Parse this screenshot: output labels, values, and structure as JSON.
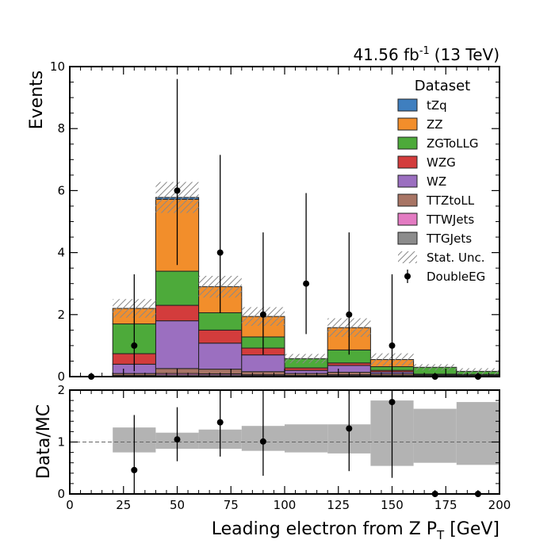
{
  "lumi": {
    "value": "41.56 fb",
    "exp": "-1",
    "energy": "(13 TeV)"
  },
  "legend": {
    "title": "Dataset",
    "entries": [
      {
        "label": "tZq",
        "color": "#3f7fbf",
        "kind": "fill"
      },
      {
        "label": "ZZ",
        "color": "#f28e2b",
        "kind": "fill"
      },
      {
        "label": "ZGToLLG",
        "color": "#4daa3a",
        "kind": "fill"
      },
      {
        "label": "WZG",
        "color": "#d33c3c",
        "kind": "fill"
      },
      {
        "label": "WZ",
        "color": "#9b6fc0",
        "kind": "fill"
      },
      {
        "label": "TTZtoLL",
        "color": "#a87565",
        "kind": "fill"
      },
      {
        "label": "TTWJets",
        "color": "#e37bc2",
        "kind": "fill"
      },
      {
        "label": "TTGJets",
        "color": "#8c8c8c",
        "kind": "fill"
      },
      {
        "label": "Stat. Unc.",
        "color": "#888888",
        "kind": "hatch"
      },
      {
        "label": "DoubleEG",
        "color": "#000000",
        "kind": "marker"
      }
    ]
  },
  "chart_data": [
    {
      "type": "bar",
      "stacked": true,
      "ylabel": "Events",
      "xlim": [
        0,
        200
      ],
      "ylim": [
        0,
        10
      ],
      "bin_edges": [
        0,
        20,
        40,
        60,
        80,
        100,
        120,
        140,
        160,
        180,
        200
      ],
      "series": [
        {
          "name": "TTGJets",
          "color": "#8c8c8c",
          "values": [
            0,
            0.02,
            0.05,
            0.05,
            0.03,
            0.02,
            0.03,
            0.02,
            0.01,
            0.01
          ]
        },
        {
          "name": "TTWJets",
          "color": "#e37bc2",
          "values": [
            0,
            0.02,
            0.05,
            0.04,
            0.03,
            0.02,
            0.03,
            0.02,
            0.01,
            0.01
          ]
        },
        {
          "name": "TTZtoLL",
          "color": "#a87565",
          "values": [
            0,
            0.06,
            0.16,
            0.15,
            0.1,
            0.06,
            0.08,
            0.05,
            0.02,
            0.02
          ]
        },
        {
          "name": "WZ",
          "color": "#9b6fc0",
          "values": [
            0,
            0.3,
            1.54,
            0.84,
            0.54,
            0.1,
            0.22,
            0.06,
            0.02,
            0.02
          ]
        },
        {
          "name": "WZG",
          "color": "#d33c3c",
          "values": [
            0,
            0.34,
            0.5,
            0.42,
            0.22,
            0.08,
            0.08,
            0.05,
            0.02,
            0.01
          ]
        },
        {
          "name": "ZGToLLG",
          "color": "#4daa3a",
          "values": [
            0,
            0.96,
            1.1,
            0.56,
            0.36,
            0.3,
            0.42,
            0.12,
            0.22,
            0.1
          ]
        },
        {
          "name": "ZZ",
          "color": "#f28e2b",
          "values": [
            0,
            0.5,
            2.32,
            0.84,
            0.66,
            0,
            0.72,
            0.23,
            0,
            0
          ]
        },
        {
          "name": "tZq",
          "color": "#3f7fbf",
          "values": [
            0,
            0,
            0.06,
            0,
            0,
            0,
            0,
            0,
            0,
            0
          ]
        }
      ],
      "stat_unc": [
        0,
        0.3,
        0.5,
        0.35,
        0.3,
        0.15,
        0.3,
        0.2,
        0.1,
        0.1
      ],
      "data": {
        "name": "DoubleEG",
        "x": [
          10,
          30,
          50,
          70,
          90,
          110,
          130,
          150,
          170,
          190
        ],
        "y": [
          0,
          1,
          6,
          4,
          2,
          3,
          2,
          1,
          0,
          0
        ],
        "err_up": [
          0,
          2.3,
          3.6,
          3.15,
          2.65,
          2.92,
          2.65,
          2.3,
          0,
          0
        ],
        "err_down": [
          0,
          0.83,
          2.4,
          1.95,
          1.29,
          1.63,
          1.29,
          0.83,
          0,
          0
        ]
      }
    },
    {
      "type": "scatter",
      "ylabel": "Data/MC",
      "xlabel": "Leading electron from Z  P_T [GeV]",
      "xlim": [
        0,
        200
      ],
      "ylim": [
        0,
        2
      ],
      "x_ticks": [
        0,
        25,
        50,
        75,
        100,
        125,
        150,
        175,
        200
      ],
      "y_ticks": [
        0,
        1,
        2
      ],
      "reference_line": 1,
      "unc_band": [
        {
          "x0": 20,
          "x1": 40,
          "lo": 0.8,
          "hi": 1.28
        },
        {
          "x0": 40,
          "x1": 60,
          "lo": 0.87,
          "hi": 1.18
        },
        {
          "x0": 60,
          "x1": 80,
          "lo": 0.87,
          "hi": 1.24
        },
        {
          "x0": 80,
          "x1": 100,
          "lo": 0.83,
          "hi": 1.31
        },
        {
          "x0": 100,
          "x1": 120,
          "lo": 0.8,
          "hi": 1.34
        },
        {
          "x0": 120,
          "x1": 140,
          "lo": 0.78,
          "hi": 1.34
        },
        {
          "x0": 140,
          "x1": 160,
          "lo": 0.54,
          "hi": 1.8
        },
        {
          "x0": 160,
          "x1": 180,
          "lo": 0.6,
          "hi": 1.64
        },
        {
          "x0": 180,
          "x1": 200,
          "lo": 0.56,
          "hi": 1.77
        }
      ],
      "points": [
        {
          "x": 30,
          "y": 0.46,
          "err_up": 1.06,
          "err_down": 0.46
        },
        {
          "x": 50,
          "y": 1.05,
          "err_up": 0.62,
          "err_down": 0.42
        },
        {
          "x": 70,
          "y": 1.38,
          "err_up": 1.08,
          "err_down": 0.66
        },
        {
          "x": 90,
          "y": 1.01,
          "err_up": 1.33,
          "err_down": 0.66
        },
        {
          "x": 130,
          "y": 1.26,
          "err_up": 1.68,
          "err_down": 0.82
        },
        {
          "x": 150,
          "y": 1.77,
          "err_up": 4.04,
          "err_down": 1.46
        },
        {
          "x": 170,
          "y": 0,
          "err_up": 0,
          "err_down": 0
        },
        {
          "x": 190,
          "y": 0,
          "err_up": 0,
          "err_down": 0
        }
      ]
    }
  ]
}
